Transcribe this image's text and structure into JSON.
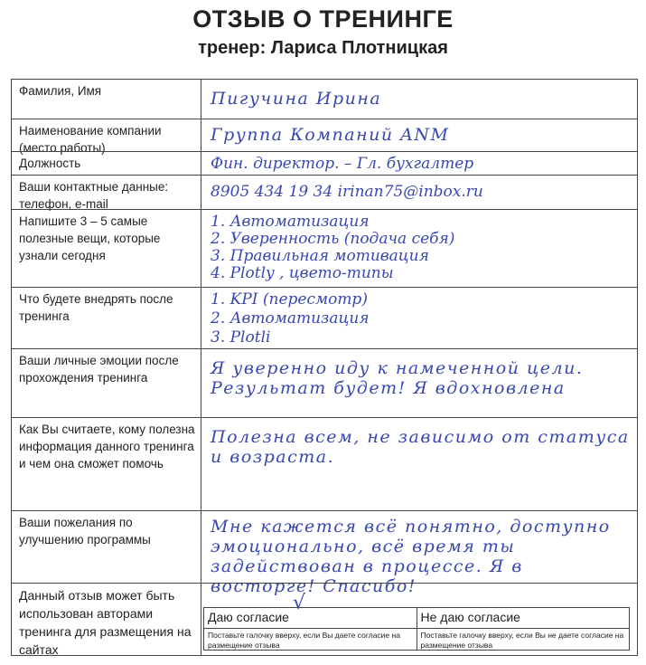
{
  "title": "ОТЗЫВ О ТРЕНИНГЕ",
  "subtitle": "тренер: Лариса Плотницкая",
  "rows": [
    {
      "label": "Фамилия, Имя",
      "answer": "Пигучина  Ирина"
    },
    {
      "label": "Наименование компании (место работы)",
      "answer": "Группа Компаний ANM"
    },
    {
      "label": "Должность",
      "answer": "Фин. директор. – Гл. бухгалтер"
    },
    {
      "label": "Ваши контактные данные: телефон, e-mail",
      "answer": "8905 434 19 34   irinan75@inbox.ru"
    },
    {
      "label": "Напишите 3 – 5 самые полезные вещи, которые узнали сегодня",
      "answer": "1. Автоматизация\n2. Уверенность (подача себя)\n3. Правильная мотивация\n4. Plotly , цвето-типы"
    },
    {
      "label": "Что будете внедрять после тренинга",
      "answer": "1. KPI (пересмотр)\n2. Автоматизация\n3. Plotli"
    },
    {
      "label": "Ваши личные эмоции после прохождения тренинга",
      "answer": "Я уверенно иду к намеченной цели. Результат будет! Я вдохновлена"
    },
    {
      "label": "Как Вы считаете, кому полезна информация данного тренинга и чем она сможет помочь",
      "answer": "Полезна всем, не зависимо от статуса и возраста."
    },
    {
      "label": "Ваши пожелания по улучшению программы",
      "answer": "Мне кажется всё понятно, доступно эмоционально, всё время ты задействован в процессе. Я в восторге! Спасибо!"
    },
    {
      "label": "Данный отзыв может быть использован авторами тренинга для размещения на сайтах"
    }
  ],
  "consent": {
    "agree_label": "Даю согласие",
    "agree_hint": "Поставьте галочку вверху, если Вы даете согласие на размещение отзыва",
    "disagree_label": "Не даю согласие",
    "disagree_hint": "Поставьте галочку вверху, если Вы не даете согласие на размещение отзыва",
    "checked": "agree",
    "check_mark": "√"
  },
  "colors": {
    "ink": "#3848b0",
    "lines": "#444444"
  }
}
